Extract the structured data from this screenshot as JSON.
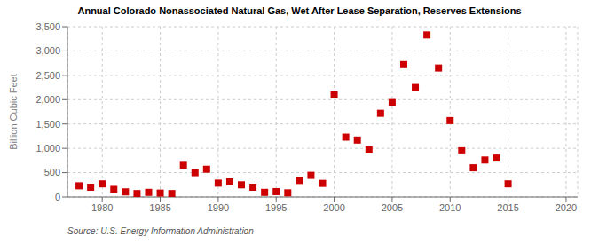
{
  "chart_data": {
    "type": "scatter",
    "title": "Annual Colorado Nonassociated Natural Gas, Wet After Lease Separation, Reserves Extensions",
    "ylabel": "Billion Cubic Feet",
    "source": "Source: U.S. Energy Information Administration",
    "x": [
      1978,
      1979,
      1980,
      1981,
      1982,
      1983,
      1984,
      1985,
      1986,
      1987,
      1988,
      1989,
      1990,
      1991,
      1992,
      1993,
      1994,
      1995,
      1996,
      1997,
      1998,
      1999,
      2000,
      2001,
      2002,
      2003,
      2004,
      2005,
      2006,
      2007,
      2008,
      2009,
      2010,
      2011,
      2012,
      2013,
      2014,
      2015
    ],
    "values": [
      230,
      200,
      270,
      155,
      105,
      70,
      95,
      80,
      70,
      650,
      500,
      570,
      285,
      310,
      250,
      200,
      95,
      110,
      85,
      340,
      445,
      280,
      2100,
      1230,
      1170,
      970,
      1720,
      1940,
      2720,
      2250,
      3330,
      2650,
      1570,
      950,
      600,
      760,
      800,
      270
    ],
    "color": "#cc0000",
    "marker": "square",
    "xlim": [
      1977,
      2021
    ],
    "ylim": [
      0,
      3500
    ],
    "xticks": [
      1980,
      1985,
      1990,
      1995,
      2000,
      2005,
      2010,
      2015,
      2020
    ],
    "yticks": [
      0,
      500,
      {
        "value": 1000,
        "label": "1,000"
      },
      {
        "value": 1500,
        "label": "1,500"
      },
      {
        "value": 2000,
        "label": "2,000"
      },
      {
        "value": 2500,
        "label": "2,500"
      },
      {
        "value": 3000,
        "label": "3,000"
      },
      {
        "value": 3500,
        "label": "3,500"
      }
    ],
    "grid": true
  }
}
